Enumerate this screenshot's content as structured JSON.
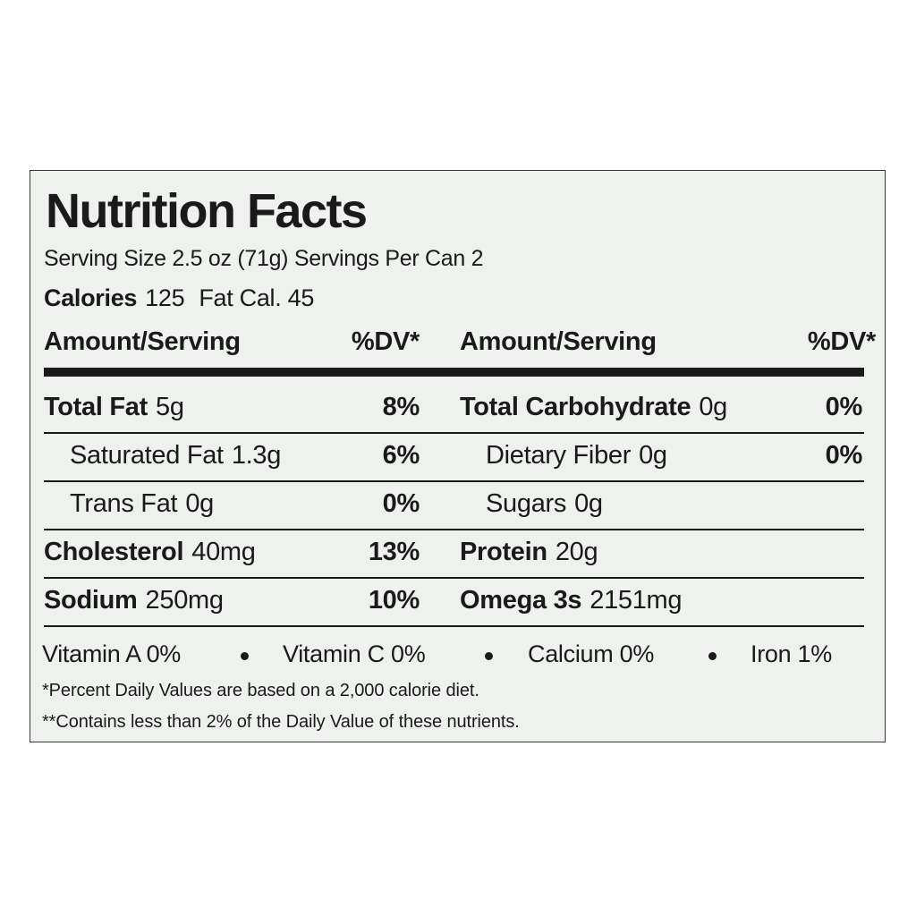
{
  "title": "Nutrition Facts",
  "serving": "Serving Size 2.5 oz (71g) Servings Per Can 2",
  "calories": {
    "label": "Calories",
    "value": "125",
    "fat_cal": "Fat Cal. 45"
  },
  "header": {
    "amount": "Amount/Serving",
    "dv": "%DV*"
  },
  "left_rows": [
    {
      "name": "Total Fat",
      "amount": "5g",
      "dv": "8%",
      "bold": true
    },
    {
      "name": "Saturated Fat",
      "amount": "1.3g",
      "dv": "6%",
      "bold": false
    },
    {
      "name": "Trans Fat",
      "amount": "0g",
      "dv": "0%",
      "bold": false
    },
    {
      "name": "Cholesterol",
      "amount": "40mg",
      "dv": "13%",
      "bold": true
    },
    {
      "name": "Sodium",
      "amount": "250mg",
      "dv": "10%",
      "bold": true
    }
  ],
  "right_rows": [
    {
      "name": "Total Carbohydrate",
      "amount": "0g",
      "dv": "0%",
      "bold": true
    },
    {
      "name": "Dietary Fiber",
      "amount": "0g",
      "dv": "0%",
      "bold": false
    },
    {
      "name": "Sugars",
      "amount": "0g",
      "bold": false
    },
    {
      "name": "Protein",
      "amount": "20g",
      "bold": true
    },
    {
      "name": "Omega 3s",
      "amount": "2151mg",
      "bold": true
    }
  ],
  "vitamins": [
    "Vitamin A  0%",
    "Vitamin C  0%",
    "Calcium 0%",
    "Iron 1%"
  ],
  "footnotes": [
    "*Percent Daily Values are based on a 2,000 calorie diet.",
    "**Contains less than 2% of the Daily Value of these nutrients."
  ]
}
